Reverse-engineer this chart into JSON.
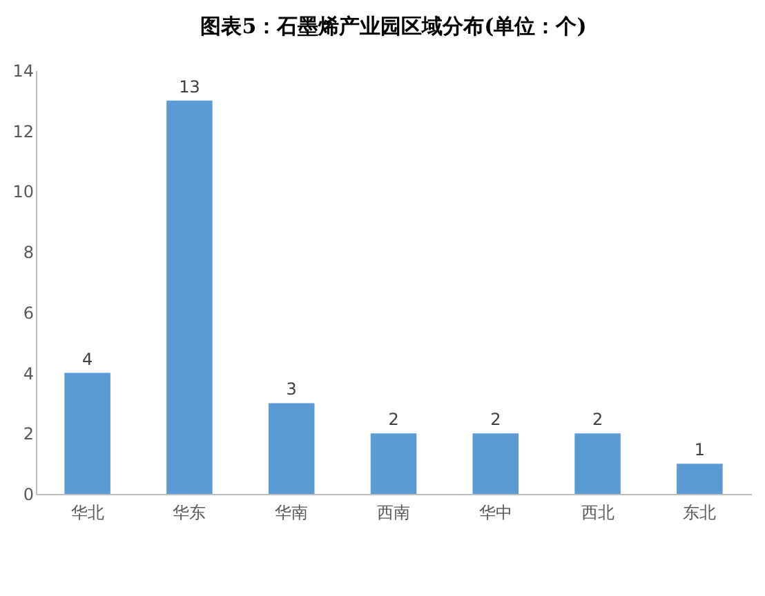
{
  "chart_data": {
    "type": "bar",
    "title": "图表5：石墨烯产业园区域分布(单位：个)",
    "categories": [
      "华北",
      "华东",
      "华南",
      "西南",
      "华中",
      "西北",
      "东北"
    ],
    "values": [
      4,
      13,
      3,
      2,
      2,
      2,
      1
    ],
    "color": "#5b9bd5",
    "ylim": [
      0,
      14
    ],
    "yticks": [
      0,
      2,
      4,
      6,
      8,
      10,
      12,
      14
    ],
    "data_labels": true,
    "grid": false
  }
}
